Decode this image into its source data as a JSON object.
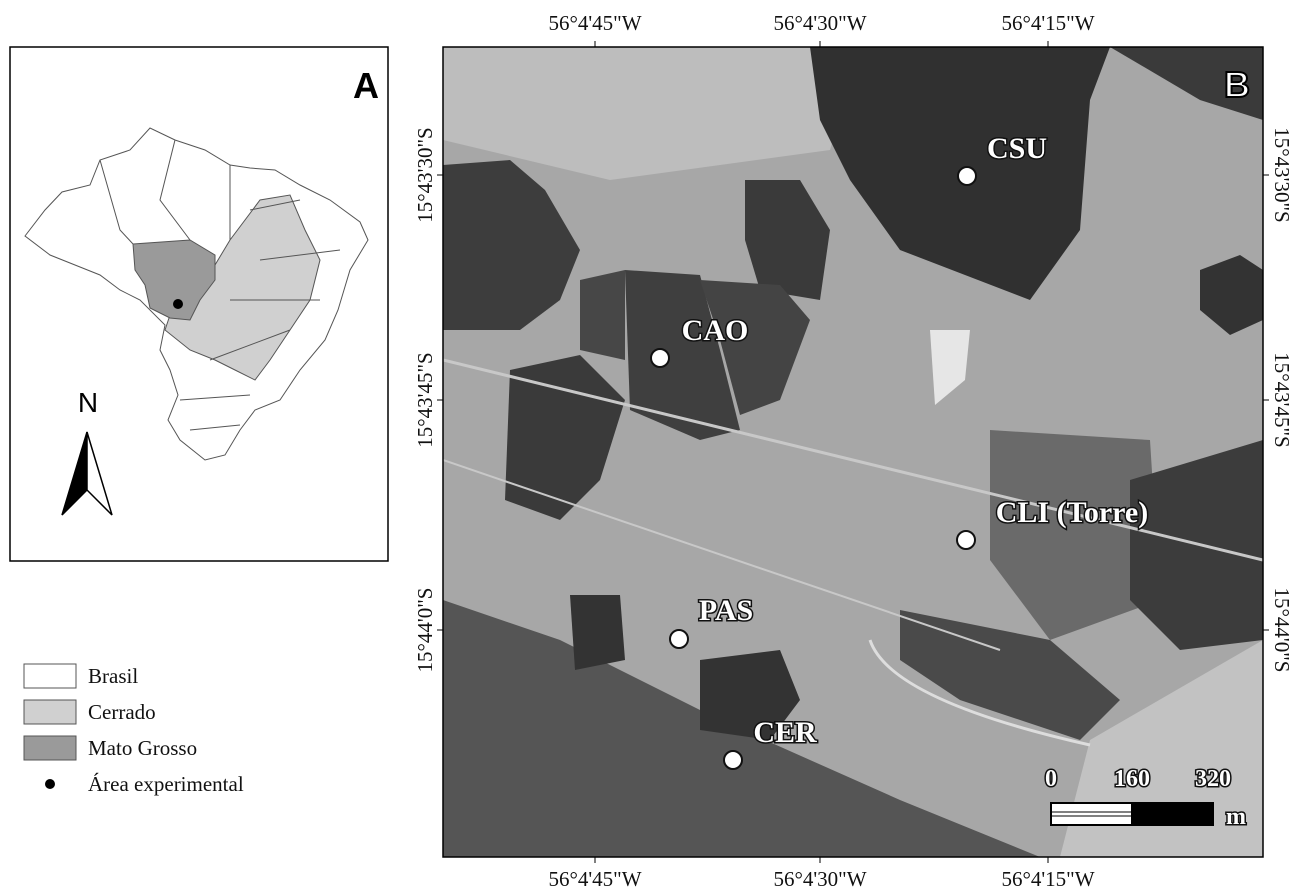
{
  "panel_a": {
    "label": "A",
    "north": "N",
    "legend": [
      "Brasil",
      "Cerrado",
      "Mato Grosso",
      "Área experimental"
    ]
  },
  "panel_b": {
    "label": "B",
    "top_ticks": [
      "56°4'45\"W",
      "56°4'30\"W",
      "56°4'15\"W"
    ],
    "bottom_ticks": [
      "56°4'45\"W",
      "56°4'30\"W",
      "56°4'15\"W"
    ],
    "left_ticks": [
      "15°43'30\"S",
      "15°43'45\"S",
      "15°44'0\"S"
    ],
    "right_ticks": [
      "15°43'30\"S",
      "15°43'45\"S",
      "15°44'0\"S"
    ],
    "sites": [
      "CSU",
      "CAO",
      "CLI (Torre)",
      "PAS",
      "CER"
    ],
    "scale_bar": {
      "ticks": [
        "0",
        "160",
        "320"
      ],
      "unit": "m"
    }
  }
}
